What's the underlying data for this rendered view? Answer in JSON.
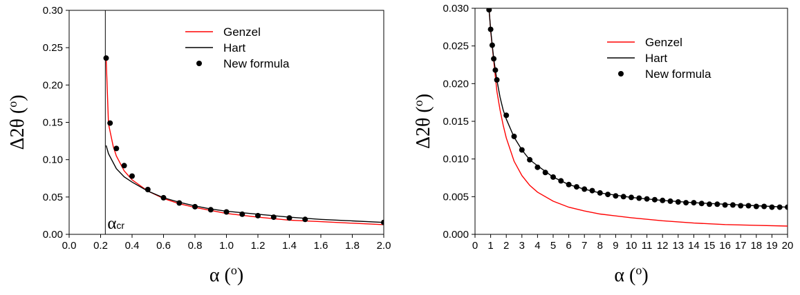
{
  "chart_data": [
    {
      "type": "line",
      "xlabel": "α (o)",
      "ylabel": "Δ2θ (o)",
      "xlim": [
        0,
        2.0
      ],
      "ylim": [
        0,
        0.3
      ],
      "xticks": [
        "0.0",
        "0.2",
        "0.4",
        "0.6",
        "0.8",
        "1.0",
        "1.2",
        "1.4",
        "1.6",
        "1.8",
        "2.0"
      ],
      "yticks": [
        "0.00",
        "0.05",
        "0.10",
        "0.15",
        "0.20",
        "0.25",
        "0.30"
      ],
      "legend_position": "top-right",
      "annotation": {
        "text": "α",
        "subscript": "cr",
        "x": 0.23
      },
      "series": [
        {
          "name": "Genzel",
          "style": "line",
          "color": "#ff0000",
          "x": [
            0.235,
            0.25,
            0.28,
            0.3,
            0.35,
            0.4,
            0.5,
            0.6,
            0.7,
            0.8,
            0.9,
            1.0,
            1.2,
            1.4,
            1.6,
            1.8,
            2.0
          ],
          "y": [
            0.236,
            0.148,
            0.118,
            0.105,
            0.085,
            0.073,
            0.058,
            0.048,
            0.041,
            0.036,
            0.032,
            0.028,
            0.023,
            0.019,
            0.017,
            0.015,
            0.013
          ]
        },
        {
          "name": "Hart",
          "style": "line",
          "color": "#000000",
          "x": [
            0.235,
            0.25,
            0.3,
            0.35,
            0.4,
            0.5,
            0.6,
            0.7,
            0.8,
            0.9,
            1.0,
            1.2,
            1.4,
            1.6,
            1.8,
            2.0
          ],
          "y": [
            0.119,
            0.108,
            0.088,
            0.077,
            0.07,
            0.058,
            0.049,
            0.043,
            0.038,
            0.034,
            0.031,
            0.027,
            0.023,
            0.02,
            0.018,
            0.016
          ]
        },
        {
          "name": "New formula",
          "style": "markers",
          "color": "#000000",
          "x": [
            0.235,
            0.26,
            0.3,
            0.35,
            0.4,
            0.5,
            0.6,
            0.7,
            0.8,
            0.9,
            1.0,
            1.1,
            1.2,
            1.3,
            1.4,
            1.5,
            2.0
          ],
          "y": [
            0.236,
            0.149,
            0.115,
            0.092,
            0.078,
            0.06,
            0.049,
            0.042,
            0.037,
            0.033,
            0.03,
            0.027,
            0.025,
            0.023,
            0.022,
            0.02,
            0.016
          ]
        }
      ]
    },
    {
      "type": "line",
      "xlabel": "α (o)",
      "ylabel": "Δ2θ (o)",
      "xlim": [
        0,
        20
      ],
      "ylim": [
        0,
        0.03
      ],
      "xticks": [
        "0",
        "1",
        "2",
        "3",
        "4",
        "5",
        "6",
        "7",
        "8",
        "9",
        "10",
        "11",
        "12",
        "13",
        "14",
        "15",
        "16",
        "17",
        "18",
        "19",
        "20"
      ],
      "yticks": [
        "0.000",
        "0.005",
        "0.010",
        "0.015",
        "0.020",
        "0.025",
        "0.030"
      ],
      "legend_position": "top-right",
      "series": [
        {
          "name": "Genzel",
          "style": "line",
          "color": "#ff0000",
          "x": [
            0.9,
            1.0,
            1.2,
            1.4,
            1.6,
            1.8,
            2.0,
            2.5,
            3.0,
            3.5,
            4.0,
            5.0,
            6.0,
            7.0,
            8.0,
            10.0,
            12.0,
            14.0,
            16.0,
            18.0,
            20.0
          ],
          "y": [
            0.03,
            0.027,
            0.023,
            0.019,
            0.0165,
            0.0145,
            0.0128,
            0.0097,
            0.0078,
            0.0065,
            0.0056,
            0.0044,
            0.0036,
            0.0031,
            0.0027,
            0.0022,
            0.0018,
            0.0015,
            0.0013,
            0.0012,
            0.0011
          ]
        },
        {
          "name": "Hart",
          "style": "line",
          "color": "#000000",
          "x": [
            0.9,
            1.0,
            1.1,
            1.2,
            1.3,
            1.4,
            1.6,
            1.8,
            2.0,
            2.5,
            3.0,
            3.5,
            4.0,
            5.0,
            6.0,
            7.0,
            8.0,
            10.0,
            12.0,
            14.0,
            16.0,
            18.0,
            20.0
          ],
          "y": [
            0.0298,
            0.0272,
            0.0251,
            0.0233,
            0.0218,
            0.0205,
            0.0182,
            0.0165,
            0.0153,
            0.0129,
            0.0112,
            0.0099,
            0.0091,
            0.0076,
            0.0066,
            0.006,
            0.0055,
            0.0049,
            0.0045,
            0.0042,
            0.004,
            0.0038,
            0.0036
          ]
        },
        {
          "name": "New formula",
          "style": "markers",
          "color": "#000000",
          "x": [
            0.9,
            1.0,
            1.1,
            1.2,
            1.3,
            1.4,
            2.0,
            2.5,
            3.0,
            3.5,
            4.0,
            4.5,
            5.0,
            5.5,
            6.0,
            6.5,
            7.0,
            7.5,
            8.0,
            8.5,
            9.0,
            9.5,
            10.0,
            10.5,
            11.0,
            11.5,
            12.0,
            12.5,
            13.0,
            13.5,
            14.0,
            14.5,
            15.0,
            15.5,
            16.0,
            16.5,
            17.0,
            17.5,
            18.0,
            18.5,
            19.0,
            19.5,
            20.0
          ],
          "y": [
            0.0298,
            0.0272,
            0.0251,
            0.0233,
            0.0218,
            0.0205,
            0.0158,
            0.013,
            0.0112,
            0.0099,
            0.0089,
            0.0082,
            0.0076,
            0.0071,
            0.0066,
            0.0063,
            0.006,
            0.0058,
            0.0055,
            0.0053,
            0.0051,
            0.005,
            0.0049,
            0.0048,
            0.0047,
            0.0046,
            0.0045,
            0.0044,
            0.0043,
            0.0042,
            0.0042,
            0.0041,
            0.004,
            0.004,
            0.0039,
            0.0039,
            0.0038,
            0.0038,
            0.0037,
            0.0037,
            0.0036,
            0.0036,
            0.0036
          ]
        }
      ]
    }
  ]
}
